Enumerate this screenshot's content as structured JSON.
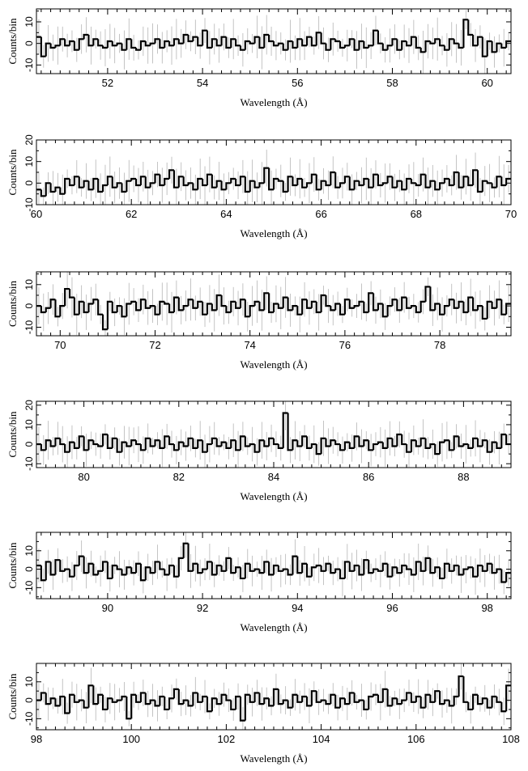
{
  "chart_data": [
    {
      "type": "line",
      "title": "",
      "xlabel": "Wavelength (Å)",
      "ylabel": "Counts/bin",
      "xlim": [
        50.5,
        60.5
      ],
      "ylim": [
        -14,
        16
      ],
      "xticks": [
        "52",
        "54",
        "56",
        "58",
        "60"
      ],
      "yticks": [
        "-10",
        "0",
        "10"
      ],
      "grid": false,
      "legend": "none",
      "series": [
        {
          "bin_width": 0.1,
          "x_start": 50.5,
          "values": [
            3,
            -6,
            0,
            -2,
            -1,
            2,
            -1,
            1,
            -3,
            2,
            4,
            -1,
            2,
            -1,
            -2,
            1,
            -1,
            0,
            -3,
            2,
            -2,
            -3,
            1,
            -1,
            0,
            2,
            -2,
            1,
            -1,
            2,
            0,
            4,
            1,
            3,
            -1,
            6,
            -2,
            2,
            -1,
            3,
            -2,
            2,
            -1,
            -3,
            1,
            0,
            3,
            -2,
            4,
            1,
            -1,
            0,
            -3,
            1,
            -2,
            2,
            -1,
            3,
            -1,
            5,
            0,
            -3,
            2,
            1,
            -2,
            -1,
            2,
            -3,
            1,
            -2,
            -1,
            6,
            0,
            -3,
            -1,
            2,
            -3,
            1,
            -1,
            3,
            -2,
            -4,
            1,
            0,
            2,
            -1,
            -3,
            2,
            0,
            -2,
            11,
            4,
            -1,
            3,
            -6,
            1,
            -4,
            0,
            -2,
            1
          ]
        }
      ]
    },
    {
      "type": "line",
      "title": "",
      "xlabel": "Wavelength (Å)",
      "ylabel": "Counts/bin",
      "xlim": [
        60,
        70
      ],
      "ylim": [
        -10,
        20
      ],
      "xticks": [
        "60",
        "62",
        "64",
        "66",
        "68",
        "70"
      ],
      "yticks": [
        "-10",
        "0",
        "10",
        "20"
      ],
      "grid": false,
      "legend": "none",
      "series": [
        {
          "bin_width": 0.1,
          "x_start": 60.0,
          "values": [
            -3,
            -6,
            0,
            -4,
            -2,
            -5,
            2,
            -1,
            3,
            -2,
            1,
            -3,
            2,
            -4,
            -1,
            3,
            -2,
            0,
            -4,
            1,
            2,
            -1,
            3,
            -2,
            0,
            4,
            -1,
            2,
            6,
            -2,
            3,
            -1,
            0,
            -3,
            2,
            -1,
            4,
            -2,
            1,
            -3,
            0,
            2,
            -1,
            3,
            -4,
            1,
            -2,
            0,
            7,
            -3,
            2,
            1,
            -4,
            3,
            -1,
            2,
            -2,
            0,
            4,
            -3,
            1,
            -1,
            5,
            -2,
            0,
            3,
            -3,
            1,
            -1,
            2,
            -2,
            4,
            -1,
            0,
            3,
            -2,
            1,
            -3,
            2,
            0,
            -1,
            4,
            -2,
            1,
            -3,
            0,
            2,
            -1,
            5,
            -2,
            3,
            -1,
            6,
            -4,
            1,
            0,
            -2,
            3,
            -1,
            2
          ]
        }
      ]
    },
    {
      "type": "line",
      "title": "",
      "xlabel": "Wavelength (Å)",
      "ylabel": "Counts/bin",
      "xlim": [
        69.5,
        79.5
      ],
      "ylim": [
        -14,
        16
      ],
      "xticks": [
        "70",
        "72",
        "74",
        "76",
        "78"
      ],
      "yticks": [
        "-10",
        "0",
        "10"
      ],
      "grid": false,
      "legend": "none",
      "series": [
        {
          "bin_width": 0.1,
          "x_start": 69.5,
          "values": [
            0,
            -3,
            -1,
            3,
            -5,
            0,
            8,
            4,
            -4,
            2,
            -3,
            1,
            3,
            -4,
            -11,
            2,
            -3,
            0,
            -5,
            1,
            2,
            -2,
            3,
            -1,
            0,
            -4,
            2,
            1,
            -3,
            4,
            -2,
            0,
            3,
            -1,
            2,
            -4,
            1,
            -2,
            5,
            0,
            -3,
            2,
            -1,
            3,
            -5,
            0,
            2,
            -2,
            6,
            -3,
            1,
            -1,
            4,
            -2,
            0,
            -4,
            3,
            -1,
            2,
            -3,
            5,
            0,
            -2,
            1,
            -4,
            3,
            -1,
            0,
            2,
            -3,
            6,
            -2,
            1,
            -5,
            0,
            3,
            -2,
            4,
            -1,
            0,
            -3,
            2,
            9,
            -2,
            1,
            -4,
            0,
            3,
            -1,
            2,
            -3,
            4,
            -2,
            0,
            -6,
            2,
            -1,
            3,
            -4,
            1
          ]
        }
      ]
    },
    {
      "type": "line",
      "title": "",
      "xlabel": "Wavelength (Å)",
      "ylabel": "Counts/bin",
      "xlim": [
        79,
        89
      ],
      "ylim": [
        -12,
        22
      ],
      "xticks": [
        "80",
        "82",
        "84",
        "86",
        "88"
      ],
      "yticks": [
        "-10",
        "0",
        "10",
        "20"
      ],
      "grid": false,
      "legend": "none",
      "series": [
        {
          "bin_width": 0.1,
          "x_start": 79.0,
          "values": [
            0,
            -3,
            2,
            -1,
            3,
            0,
            -4,
            1,
            -2,
            4,
            -3,
            2,
            0,
            -1,
            5,
            -2,
            3,
            -4,
            1,
            -1,
            2,
            0,
            -3,
            3,
            -1,
            2,
            -2,
            4,
            0,
            -3,
            1,
            -1,
            3,
            -2,
            2,
            -4,
            0,
            3,
            -1,
            1,
            -2,
            2,
            -3,
            4,
            -1,
            0,
            -4,
            2,
            -1,
            3,
            0,
            -2,
            16,
            -3,
            2,
            -1,
            4,
            -2,
            0,
            -5,
            3,
            -1,
            2,
            0,
            -3,
            1,
            -2,
            4,
            -1,
            2,
            -3,
            0,
            1,
            -2,
            3,
            -1,
            5,
            0,
            -4,
            2,
            -1,
            3,
            -2,
            0,
            -5,
            1,
            2,
            -3,
            4,
            -1,
            0,
            -2,
            3,
            -1,
            2,
            -4,
            1,
            -2,
            5,
            0
          ]
        }
      ]
    },
    {
      "type": "line",
      "title": "",
      "xlabel": "Wavelength (Å)",
      "ylabel": "Counts/bin",
      "xlim": [
        88.5,
        98.5
      ],
      "ylim": [
        -16,
        20
      ],
      "xticks": [
        "90",
        "92",
        "94",
        "96",
        "98"
      ],
      "yticks": [
        "-10",
        "0",
        "10"
      ],
      "grid": false,
      "legend": "none",
      "series": [
        {
          "bin_width": 0.1,
          "x_start": 88.5,
          "values": [
            2,
            -6,
            4,
            -3,
            5,
            -1,
            0,
            -4,
            2,
            7,
            -2,
            3,
            -3,
            -1,
            4,
            -5,
            2,
            0,
            -3,
            1,
            -2,
            3,
            -6,
            1,
            -2,
            4,
            0,
            -3,
            2,
            -4,
            6,
            14,
            -1,
            3,
            -2,
            0,
            4,
            -3,
            2,
            -1,
            6,
            -2,
            1,
            -5,
            3,
            -1,
            0,
            -2,
            4,
            -3,
            2,
            -1,
            0,
            -3,
            7,
            -2,
            3,
            -4,
            1,
            2,
            -1,
            3,
            -2,
            0,
            -5,
            4,
            -1,
            2,
            -3,
            5,
            -2,
            0,
            -1,
            3,
            -4,
            1,
            -2,
            2,
            0,
            -3,
            4,
            -1,
            6,
            -2,
            1,
            -5,
            3,
            -1,
            2,
            -3,
            0,
            1,
            -4,
            2,
            -1,
            3,
            -2,
            0,
            -7,
            -2
          ]
        }
      ]
    },
    {
      "type": "line",
      "title": "",
      "xlabel": "Wavelength (Å)",
      "ylabel": "Counts/bin",
      "xlim": [
        98,
        108
      ],
      "ylim": [
        -16,
        20
      ],
      "xticks": [
        "98",
        "100",
        "102",
        "104",
        "106",
        "108"
      ],
      "yticks": [
        "-10",
        "0",
        "10"
      ],
      "grid": false,
      "legend": "none",
      "series": [
        {
          "bin_width": 0.1,
          "x_start": 98.0,
          "values": [
            0,
            4,
            -2,
            1,
            -3,
            2,
            -7,
            3,
            -1,
            0,
            -4,
            8,
            -2,
            3,
            -5,
            1,
            -1,
            0,
            2,
            -10,
            3,
            -1,
            4,
            -2,
            0,
            -3,
            2,
            -5,
            1,
            6,
            -2,
            0,
            -3,
            4,
            -1,
            2,
            -6,
            1,
            -2,
            3,
            0,
            -5,
            2,
            -11,
            3,
            -1,
            4,
            -2,
            1,
            -3,
            6,
            -2,
            0,
            -4,
            3,
            -1,
            2,
            -3,
            5,
            -1,
            0,
            -2,
            3,
            -4,
            1,
            -2,
            4,
            -1,
            0,
            -5,
            2,
            3,
            -1,
            6,
            -3,
            1,
            -2,
            0,
            4,
            -1,
            2,
            -4,
            3,
            -1,
            5,
            -2,
            0,
            -3,
            2,
            13,
            -1,
            -5,
            3,
            -2,
            1,
            -4,
            2,
            -1,
            -6,
            8
          ]
        }
      ]
    }
  ]
}
